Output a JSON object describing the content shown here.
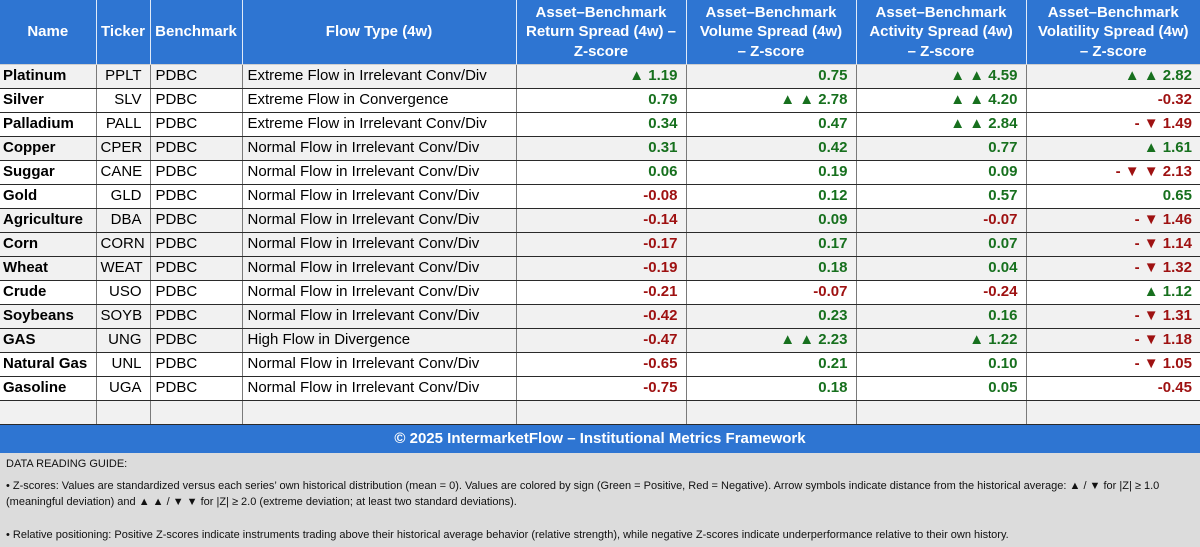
{
  "colors": {
    "header_blue": "#2e75d2",
    "green": "#17701e",
    "red": "#9e1111",
    "row_shade": "#f1f1f1",
    "guide_bg": "#dcdcdc"
  },
  "table": {
    "columns": [
      {
        "key": "name",
        "label": "Name"
      },
      {
        "key": "ticker",
        "label": "Ticker"
      },
      {
        "key": "benchmark",
        "label": "Benchmark"
      },
      {
        "key": "flow",
        "label": "Flow Type (4w)"
      },
      {
        "key": "return",
        "label": "Asset–Benchmark\nReturn Spread (4w) –\nZ-score"
      },
      {
        "key": "volume",
        "label": "Asset–Benchmark\nVolume Spread (4w)\n– Z-score"
      },
      {
        "key": "activity",
        "label": "Asset–Benchmark\nActivity Spread (4w)\n– Z-score"
      },
      {
        "key": "volatility",
        "label": "Asset–Benchmark\nVolatility Spread (4w)\n– Z-score"
      }
    ],
    "rows": [
      {
        "name": "Platinum",
        "ticker": "PPLT",
        "benchmark": "PDBC",
        "flow": "Extreme Flow in Irrelevant Conv/Div",
        "shaded": true,
        "metrics": [
          {
            "text": "▲ 1.19",
            "sign": "pos"
          },
          {
            "text": "0.75",
            "sign": "pos"
          },
          {
            "text": "▲ ▲ 4.59",
            "sign": "pos"
          },
          {
            "text": "▲ ▲ 2.82",
            "sign": "pos"
          }
        ]
      },
      {
        "name": "Silver",
        "ticker": "SLV",
        "benchmark": "PDBC",
        "flow": "Extreme Flow in Convergence",
        "shaded": false,
        "metrics": [
          {
            "text": "0.79",
            "sign": "pos"
          },
          {
            "text": "▲ ▲ 2.78",
            "sign": "pos"
          },
          {
            "text": "▲ ▲ 4.20",
            "sign": "pos"
          },
          {
            "text": "-0.32",
            "sign": "neg"
          }
        ]
      },
      {
        "name": "Palladium",
        "ticker": "PALL",
        "benchmark": "PDBC",
        "flow": "Extreme Flow in Irrelevant Conv/Div",
        "shaded": false,
        "metrics": [
          {
            "text": "0.34",
            "sign": "pos"
          },
          {
            "text": "0.47",
            "sign": "pos"
          },
          {
            "text": "▲ ▲ 2.84",
            "sign": "pos"
          },
          {
            "text": "- ▼ 1.49",
            "sign": "neg"
          }
        ]
      },
      {
        "name": "Copper",
        "ticker": "CPER",
        "benchmark": "PDBC",
        "flow": "Normal Flow in Irrelevant Conv/Div",
        "shaded": true,
        "metrics": [
          {
            "text": "0.31",
            "sign": "pos"
          },
          {
            "text": "0.42",
            "sign": "pos"
          },
          {
            "text": "0.77",
            "sign": "pos"
          },
          {
            "text": "▲ 1.61",
            "sign": "pos"
          }
        ]
      },
      {
        "name": "Suggar",
        "ticker": "CANE",
        "benchmark": "PDBC",
        "flow": "Normal Flow in Irrelevant Conv/Div",
        "shaded": false,
        "metrics": [
          {
            "text": "0.06",
            "sign": "pos"
          },
          {
            "text": "0.19",
            "sign": "pos"
          },
          {
            "text": "0.09",
            "sign": "pos"
          },
          {
            "text": "- ▼ ▼ 2.13",
            "sign": "neg"
          }
        ]
      },
      {
        "name": "Gold",
        "ticker": "GLD",
        "benchmark": "PDBC",
        "flow": "Normal Flow in Irrelevant Conv/Div",
        "shaded": false,
        "metrics": [
          {
            "text": "-0.08",
            "sign": "neg"
          },
          {
            "text": "0.12",
            "sign": "pos"
          },
          {
            "text": "0.57",
            "sign": "pos"
          },
          {
            "text": "0.65",
            "sign": "pos"
          }
        ]
      },
      {
        "name": "Agriculture",
        "ticker": "DBA",
        "benchmark": "PDBC",
        "flow": "Normal Flow in Irrelevant Conv/Div",
        "shaded": true,
        "metrics": [
          {
            "text": "-0.14",
            "sign": "neg"
          },
          {
            "text": "0.09",
            "sign": "pos"
          },
          {
            "text": "-0.07",
            "sign": "neg"
          },
          {
            "text": "- ▼ 1.46",
            "sign": "neg"
          }
        ]
      },
      {
        "name": "Corn",
        "ticker": "CORN",
        "benchmark": "PDBC",
        "flow": "Normal Flow in Irrelevant Conv/Div",
        "shaded": true,
        "metrics": [
          {
            "text": "-0.17",
            "sign": "neg"
          },
          {
            "text": "0.17",
            "sign": "pos"
          },
          {
            "text": "0.07",
            "sign": "pos"
          },
          {
            "text": "- ▼ 1.14",
            "sign": "neg"
          }
        ]
      },
      {
        "name": "Wheat",
        "ticker": "WEAT",
        "benchmark": "PDBC",
        "flow": "Normal Flow in Irrelevant Conv/Div",
        "shaded": true,
        "metrics": [
          {
            "text": "-0.19",
            "sign": "neg"
          },
          {
            "text": "0.18",
            "sign": "pos"
          },
          {
            "text": "0.04",
            "sign": "pos"
          },
          {
            "text": "- ▼ 1.32",
            "sign": "neg"
          }
        ]
      },
      {
        "name": "Crude",
        "ticker": "USO",
        "benchmark": "PDBC",
        "flow": "Normal Flow in Irrelevant Conv/Div",
        "shaded": false,
        "metrics": [
          {
            "text": "-0.21",
            "sign": "neg"
          },
          {
            "text": "-0.07",
            "sign": "neg"
          },
          {
            "text": "-0.24",
            "sign": "neg"
          },
          {
            "text": "▲ 1.12",
            "sign": "pos"
          }
        ]
      },
      {
        "name": "Soybeans",
        "ticker": "SOYB",
        "benchmark": "PDBC",
        "flow": "Normal Flow in Irrelevant Conv/Div",
        "shaded": true,
        "metrics": [
          {
            "text": "-0.42",
            "sign": "neg"
          },
          {
            "text": "0.23",
            "sign": "pos"
          },
          {
            "text": "0.16",
            "sign": "pos"
          },
          {
            "text": "- ▼ 1.31",
            "sign": "neg"
          }
        ]
      },
      {
        "name": "GAS",
        "ticker": "UNG",
        "benchmark": "PDBC",
        "flow": "High Flow in Divergence",
        "shaded": true,
        "metrics": [
          {
            "text": "-0.47",
            "sign": "neg"
          },
          {
            "text": "▲ ▲ 2.23",
            "sign": "pos"
          },
          {
            "text": "▲ 1.22",
            "sign": "pos"
          },
          {
            "text": "- ▼ 1.18",
            "sign": "neg"
          }
        ]
      },
      {
        "name": "Natural Gas",
        "ticker": "UNL",
        "benchmark": "PDBC",
        "flow": "Normal Flow in Irrelevant Conv/Div",
        "shaded": false,
        "metrics": [
          {
            "text": "-0.65",
            "sign": "neg"
          },
          {
            "text": "0.21",
            "sign": "pos"
          },
          {
            "text": "0.10",
            "sign": "pos"
          },
          {
            "text": "- ▼ 1.05",
            "sign": "neg"
          }
        ]
      },
      {
        "name": "Gasoline",
        "ticker": "UGA",
        "benchmark": "PDBC",
        "flow": "Normal Flow in Irrelevant Conv/Div",
        "shaded": false,
        "metrics": [
          {
            "text": "-0.75",
            "sign": "neg"
          },
          {
            "text": "0.18",
            "sign": "pos"
          },
          {
            "text": "0.05",
            "sign": "pos"
          },
          {
            "text": "-0.45",
            "sign": "neg"
          }
        ]
      },
      {
        "name": "",
        "ticker": "",
        "benchmark": "",
        "flow": "",
        "shaded": true,
        "metrics": [
          {
            "text": "",
            "sign": ""
          },
          {
            "text": "",
            "sign": ""
          },
          {
            "text": "",
            "sign": ""
          },
          {
            "text": "",
            "sign": ""
          }
        ]
      }
    ]
  },
  "footer": {
    "text": "© 2025 IntermarketFlow – Institutional Metrics Framework"
  },
  "guide": {
    "title": "DATA READING GUIDE:",
    "bullets": [
      "• Z-scores: Values are standardized versus each series’ own historical distribution (mean = 0). Values are colored by sign (Green = Positive, Red = Negative). Arrow symbols indicate distance from the historical average: ▲ / ▼ for |Z| ≥ 1.0 (meaningful deviation) and ▲ ▲ / ▼ ▼ for |Z| ≥ 2.0 (extreme deviation; at least two standard deviations).",
      "• Relative positioning: Positive Z-scores indicate instruments trading above their historical average behavior (relative strength), while negative Z-scores indicate underperformance relative to their own history."
    ]
  }
}
